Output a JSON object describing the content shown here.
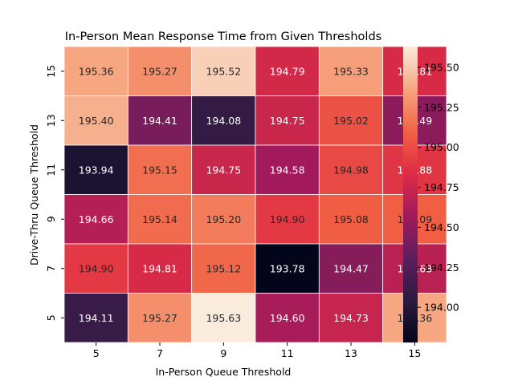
{
  "chart_data": {
    "type": "heatmap",
    "title": "In-Person Mean Response Time from Given Thresholds",
    "xlabel": "In-Person Queue Threshold",
    "ylabel": "Drive-Thru Queue Threshold",
    "x_categories": [
      "5",
      "7",
      "9",
      "11",
      "13",
      "15"
    ],
    "y_categories": [
      "15",
      "13",
      "11",
      "9",
      "7",
      "5"
    ],
    "values": [
      [
        195.36,
        195.27,
        195.52,
        194.79,
        195.33,
        194.81
      ],
      [
        195.4,
        194.41,
        194.08,
        194.75,
        195.02,
        194.49
      ],
      [
        193.94,
        195.15,
        194.75,
        194.58,
        194.98,
        194.88
      ],
      [
        194.66,
        195.14,
        195.2,
        194.9,
        195.08,
        195.09
      ],
      [
        194.9,
        194.81,
        195.12,
        193.78,
        194.47,
        194.68
      ],
      [
        194.11,
        195.27,
        195.63,
        194.6,
        194.73,
        195.36
      ]
    ],
    "value_labels": [
      [
        "195.36",
        "195.27",
        "195.52",
        "194.79",
        "195.33",
        "194.81"
      ],
      [
        "195.40",
        "194.41",
        "194.08",
        "194.75",
        "195.02",
        "194.49"
      ],
      [
        "193.94",
        "195.15",
        "194.75",
        "194.58",
        "194.98",
        "194.88"
      ],
      [
        "194.66",
        "195.14",
        "195.20",
        "194.90",
        "195.08",
        "195.09"
      ],
      [
        "194.90",
        "194.81",
        "195.12",
        "193.78",
        "194.47",
        "194.68"
      ],
      [
        "194.11",
        "195.27",
        "195.63",
        "194.60",
        "194.73",
        "195.36"
      ]
    ],
    "colormap": "rocket",
    "colorbar": {
      "range": [
        193.78,
        195.63
      ],
      "ticks": [
        194.0,
        194.25,
        194.5,
        194.75,
        195.0,
        195.25,
        195.5
      ],
      "tick_labels": [
        "194.00",
        "194.25",
        "194.50",
        "194.75",
        "195.00",
        "195.25",
        "195.50"
      ]
    }
  }
}
